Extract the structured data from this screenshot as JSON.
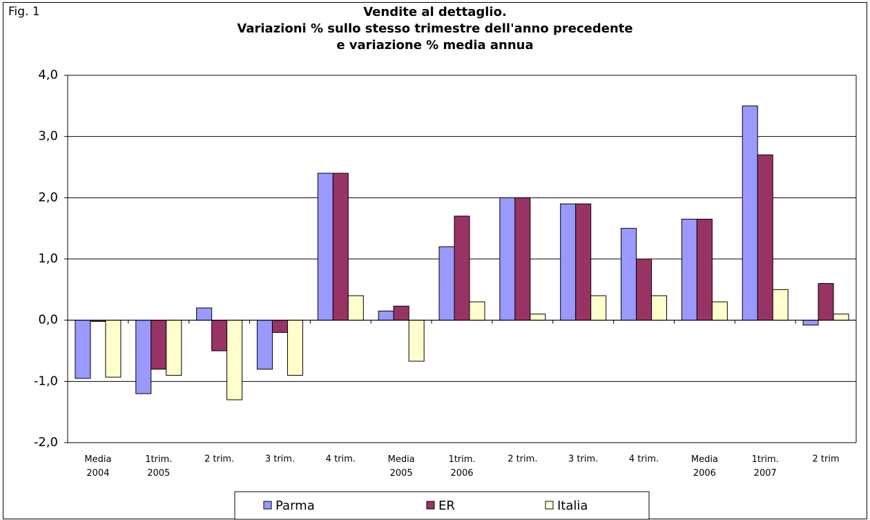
{
  "chart_data": {
    "type": "bar",
    "figure_label": "Fig. 1",
    "title": [
      "Vendite al dettaglio.",
      "Variazioni % sullo stesso trimestre dell'anno precedente",
      "e variazione % media annua"
    ],
    "categories": [
      "Media\n2004",
      "1trim.\n2005",
      "2 trim.",
      "3 trim.",
      "4 trim.",
      "Media\n2005",
      "1trim.\n2006",
      "2 trim.",
      "3 trim.",
      "4 trim.",
      "Media\n2006",
      "1trim.\n2007",
      "2 trim"
    ],
    "series": [
      {
        "name": "Parma",
        "color": "#9999ff",
        "values": [
          -0.95,
          -1.2,
          0.2,
          -0.8,
          2.4,
          0.15,
          1.2,
          2.0,
          1.9,
          1.5,
          1.65,
          3.5,
          -0.08
        ]
      },
      {
        "name": "ER",
        "color": "#993366",
        "values": [
          -0.02,
          -0.8,
          -0.5,
          -0.2,
          2.4,
          0.23,
          1.7,
          2.0,
          1.9,
          1.0,
          1.65,
          2.7,
          0.6
        ]
      },
      {
        "name": "Italia",
        "color": "#ffffcc",
        "values": [
          -0.93,
          -0.9,
          -1.3,
          -0.9,
          0.4,
          -0.67,
          0.3,
          0.1,
          0.4,
          0.4,
          0.3,
          0.5,
          0.1
        ]
      }
    ],
    "ylim": [
      -2,
      4
    ],
    "yticks": [
      {
        "value": -2,
        "label": "-2,0"
      },
      {
        "value": -1,
        "label": "-1,0"
      },
      {
        "value": 0,
        "label": "0,0"
      },
      {
        "value": 1,
        "label": "1,0"
      },
      {
        "value": 2,
        "label": "2,0"
      },
      {
        "value": 3,
        "label": "3,0"
      },
      {
        "value": 4,
        "label": "4,0"
      }
    ],
    "grid": true,
    "legend": "bottom"
  }
}
